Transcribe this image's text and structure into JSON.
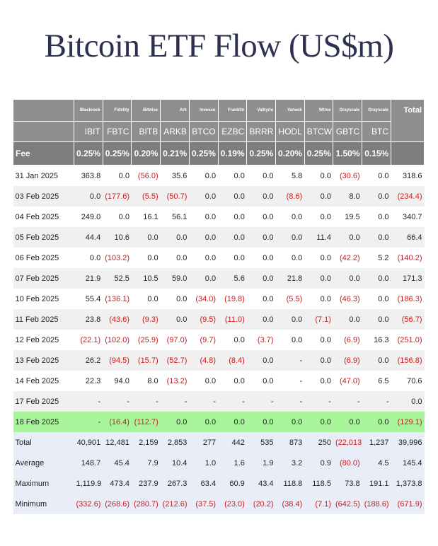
{
  "title": "Bitcoin ETF Flow (US$m)",
  "table": {
    "issuers": [
      "Blackrock",
      "Fidelity",
      "Bitwise",
      "Ark",
      "Invesco",
      "Franklin",
      "Valkyrie",
      "Vaneck",
      "Wtree",
      "Grayscale",
      "Grayscale"
    ],
    "total_header": "Total",
    "tickers": [
      "IBIT",
      "FBTC",
      "BITB",
      "ARKB",
      "BTCO",
      "EZBC",
      "BRRR",
      "HODL",
      "BTCW",
      "GBTC",
      "BTC"
    ],
    "fee_label": "Fee",
    "fees": [
      "0.25%",
      "0.25%",
      "0.20%",
      "0.21%",
      "0.25%",
      "0.19%",
      "0.25%",
      "0.20%",
      "0.25%",
      "1.50%",
      "0.15%"
    ],
    "rows": [
      [
        "31 Jan 2025",
        "363.8",
        "0.0",
        "(56.0)",
        "35.6",
        "0.0",
        "0.0",
        "0.0",
        "5.8",
        "0.0",
        "(30.6)",
        "0.0",
        "318.6"
      ],
      [
        "03 Feb 2025",
        "0.0",
        "(177.6)",
        "(5.5)",
        "(50.7)",
        "0.0",
        "0.0",
        "0.0",
        "(8.6)",
        "0.0",
        "8.0",
        "0.0",
        "(234.4)"
      ],
      [
        "04 Feb 2025",
        "249.0",
        "0.0",
        "16.1",
        "56.1",
        "0.0",
        "0.0",
        "0.0",
        "0.0",
        "0.0",
        "19.5",
        "0.0",
        "340.7"
      ],
      [
        "05 Feb 2025",
        "44.4",
        "10.6",
        "0.0",
        "0.0",
        "0.0",
        "0.0",
        "0.0",
        "0.0",
        "11.4",
        "0.0",
        "0.0",
        "66.4"
      ],
      [
        "06 Feb 2025",
        "0.0",
        "(103.2)",
        "0.0",
        "0.0",
        "0.0",
        "0.0",
        "0.0",
        "0.0",
        "0.0",
        "(42.2)",
        "5.2",
        "(140.2)"
      ],
      [
        "07 Feb 2025",
        "21.9",
        "52.5",
        "10.5",
        "59.0",
        "0.0",
        "5.6",
        "0.0",
        "21.8",
        "0.0",
        "0.0",
        "0.0",
        "171.3"
      ],
      [
        "10 Feb 2025",
        "55.4",
        "(136.1)",
        "0.0",
        "0.0",
        "(34.0)",
        "(19.8)",
        "0.0",
        "(5.5)",
        "0.0",
        "(46.3)",
        "0.0",
        "(186.3)"
      ],
      [
        "11 Feb 2025",
        "23.8",
        "(43.6)",
        "(9.3)",
        "0.0",
        "(9.5)",
        "(11.0)",
        "0.0",
        "0.0",
        "(7.1)",
        "0.0",
        "0.0",
        "(56.7)"
      ],
      [
        "12 Feb 2025",
        "(22.1)",
        "(102.0)",
        "(25.9)",
        "(97.0)",
        "(9.7)",
        "0.0",
        "(3.7)",
        "0.0",
        "0.0",
        "(6.9)",
        "16.3",
        "(251.0)"
      ],
      [
        "13 Feb 2025",
        "26.2",
        "(94.5)",
        "(15.7)",
        "(52.7)",
        "(4.8)",
        "(8.4)",
        "0.0",
        "-",
        "0.0",
        "(6.9)",
        "0.0",
        "(156.8)"
      ],
      [
        "14 Feb 2025",
        "22.3",
        "94.0",
        "8.0",
        "(13.2)",
        "0.0",
        "0.0",
        "0.0",
        "-",
        "0.0",
        "(47.0)",
        "6.5",
        "70.6"
      ],
      [
        "17 Feb 2025",
        "-",
        "-",
        "-",
        "-",
        "-",
        "-",
        "-",
        "-",
        "-",
        "-",
        "-",
        "0.0"
      ],
      [
        "18 Feb 2025",
        "-",
        "(16.4)",
        "(112.7)",
        "0.0",
        "0.0",
        "0.0",
        "0.0",
        "0.0",
        "0.0",
        "0.0",
        "0.0",
        "(129.1)"
      ]
    ],
    "summary": [
      [
        "Total",
        "40,901",
        "12,481",
        "2,159",
        "2,853",
        "277",
        "442",
        "535",
        "873",
        "250",
        "(22,013)",
        "1,237",
        "39,996"
      ],
      [
        "Average",
        "148.7",
        "45.4",
        "7.9",
        "10.4",
        "1.0",
        "1.6",
        "1.9",
        "3.2",
        "0.9",
        "(80.0)",
        "4.5",
        "145.4"
      ],
      [
        "Maximum",
        "1,119.9",
        "473.4",
        "237.9",
        "267.3",
        "63.4",
        "60.9",
        "43.4",
        "118.8",
        "118.5",
        "73.8",
        "191.1",
        "1,373.8"
      ],
      [
        "Minimum",
        "(332.6)",
        "(268.6)",
        "(280.7)",
        "(212.6)",
        "(37.5)",
        "(23.0)",
        "(20.2)",
        "(38.4)",
        "(7.1)",
        "(642.5)",
        "(188.6)",
        "(671.9)"
      ]
    ]
  }
}
